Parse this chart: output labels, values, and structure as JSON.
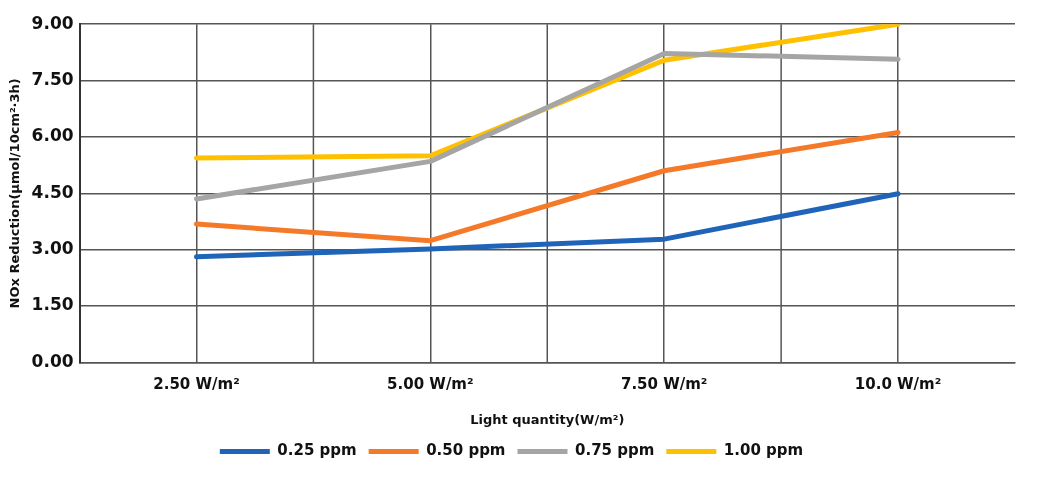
{
  "chart_data": {
    "type": "line",
    "xlabel": "Light quantity(W/m²)",
    "ylabel": "NOx Reduction(μmol/10cm²·3h)",
    "categories": [
      "2.50 W/m²",
      "5.00 W/m²",
      "7.50 W/m²",
      "10.0 W/m²"
    ],
    "series": [
      {
        "name": "0.25 ppm",
        "color": "#1f64b8",
        "values": [
          2.81,
          3.02,
          3.28,
          4.49
        ]
      },
      {
        "name": "0.50 ppm",
        "color": "#f47a2a",
        "values": [
          3.68,
          3.24,
          5.1,
          6.12
        ]
      },
      {
        "name": "0.75 ppm",
        "color": "#a5a5a5",
        "values": [
          4.35,
          5.35,
          8.22,
          8.07
        ]
      },
      {
        "name": "1.00 ppm",
        "color": "#ffc000",
        "values": [
          5.44,
          5.5,
          8.04,
          9.0
        ]
      }
    ],
    "ylim": [
      0,
      9
    ],
    "yticks": [
      {
        "value": 0,
        "label": "0.00"
      },
      {
        "value": 1.5,
        "label": "1.50"
      },
      {
        "value": 3,
        "label": "3.00"
      },
      {
        "value": 4.5,
        "label": "4.50"
      },
      {
        "value": 6,
        "label": "6.00"
      },
      {
        "value": 7.5,
        "label": "7.50"
      },
      {
        "value": 9,
        "label": "9.00"
      }
    ],
    "grid": true,
    "legend": "bottom",
    "marker": "none",
    "line_style": "solid"
  }
}
